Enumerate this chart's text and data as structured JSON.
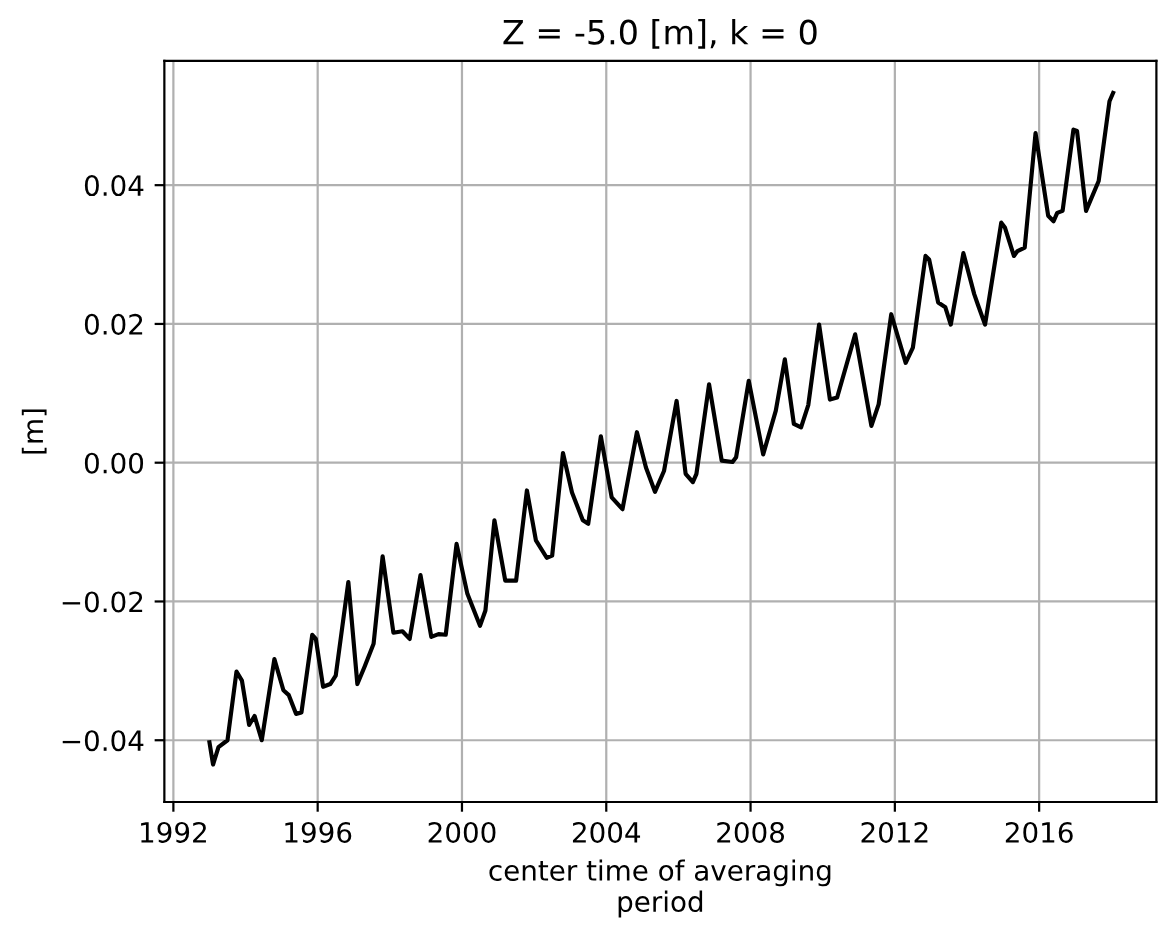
{
  "chart_data": {
    "type": "line",
    "title": "Z = -5.0 [m], k = 0",
    "xlabel": "center time of averaging\nperiod",
    "ylabel": "[m]",
    "x": [
      1993.0,
      1993.1,
      1993.25,
      1993.5,
      1993.75,
      1993.9,
      1994.1,
      1994.25,
      1994.45,
      1994.8,
      1995.05,
      1995.2,
      1995.4,
      1995.55,
      1995.85,
      1995.95,
      1996.15,
      1996.35,
      1996.5,
      1996.85,
      1997.1,
      1997.3,
      1997.55,
      1997.8,
      1998.1,
      1998.35,
      1998.55,
      1998.85,
      1999.15,
      1999.35,
      1999.55,
      1999.85,
      2000.15,
      2000.5,
      2000.65,
      2000.9,
      2001.2,
      2001.5,
      2001.8,
      2002.05,
      2002.35,
      2002.5,
      2002.8,
      2003.05,
      2003.35,
      2003.5,
      2003.85,
      2004.15,
      2004.45,
      2004.85,
      2005.1,
      2005.35,
      2005.6,
      2005.95,
      2006.2,
      2006.4,
      2006.5,
      2006.85,
      2007.2,
      2007.5,
      2007.6,
      2007.95,
      2008.35,
      2008.7,
      2008.95,
      2009.2,
      2009.4,
      2009.6,
      2009.9,
      2010.2,
      2010.4,
      2010.9,
      2011.35,
      2011.55,
      2011.9,
      2012.3,
      2012.5,
      2012.85,
      2012.95,
      2013.2,
      2013.4,
      2013.55,
      2013.9,
      2014.2,
      2014.3,
      2014.5,
      2014.95,
      2015.05,
      2015.3,
      2015.4,
      2015.6,
      2015.9,
      2016.25,
      2016.4,
      2016.5,
      2016.65,
      2016.95,
      2017.05,
      2017.3,
      2017.65,
      2017.95,
      2018.05
    ],
    "series": [
      {
        "color": "#000000",
        "values": [
          -0.0403,
          -0.0435,
          -0.041,
          -0.04,
          -0.0301,
          -0.0314,
          -0.0378,
          -0.0365,
          -0.04,
          -0.0283,
          -0.0328,
          -0.0335,
          -0.0362,
          -0.036,
          -0.0248,
          -0.0254,
          -0.0323,
          -0.0319,
          -0.0307,
          -0.0172,
          -0.0319,
          -0.0294,
          -0.0261,
          -0.0135,
          -0.0245,
          -0.0243,
          -0.0254,
          -0.0162,
          -0.0251,
          -0.0247,
          -0.0248,
          -0.0117,
          -0.0189,
          -0.0235,
          -0.0213,
          -0.0083,
          -0.017,
          -0.017,
          -0.004,
          -0.0112,
          -0.0137,
          -0.0134,
          0.0014,
          -0.0043,
          -0.0083,
          -0.0088,
          0.0038,
          -0.005,
          -0.0067,
          0.0044,
          -0.0007,
          -0.0042,
          -0.0012,
          0.0089,
          -0.0016,
          -0.0028,
          -0.0016,
          0.0113,
          0.0003,
          0.0001,
          0.0008,
          0.0118,
          0.0012,
          0.0075,
          0.0149,
          0.0056,
          0.0051,
          0.0083,
          0.0199,
          0.0091,
          0.0094,
          0.0185,
          0.0053,
          0.0084,
          0.0214,
          0.0144,
          0.0166,
          0.0298,
          0.0293,
          0.0231,
          0.0224,
          0.0199,
          0.0302,
          0.0243,
          0.0228,
          0.0199,
          0.0346,
          0.0339,
          0.0298,
          0.0305,
          0.031,
          0.0475,
          0.0356,
          0.0348,
          0.036,
          0.0363,
          0.048,
          0.0478,
          0.0363,
          0.0406,
          0.0521,
          0.0533
        ]
      }
    ],
    "xlim": [
      1991.75,
      2019.25
    ],
    "xticks": [
      1992,
      1996,
      2000,
      2004,
      2008,
      2012,
      2016
    ],
    "ylim": [
      -0.0489,
      0.0579
    ],
    "yticks": [
      {
        "value": -0.04,
        "label": "−0.04"
      },
      {
        "value": -0.02,
        "label": "−0.02"
      },
      {
        "value": 0.0,
        "label": "0.00"
      },
      {
        "value": 0.02,
        "label": "0.02"
      },
      {
        "value": 0.04,
        "label": "0.04"
      }
    ],
    "grid": true,
    "marker": "none",
    "line_style": "solid"
  }
}
